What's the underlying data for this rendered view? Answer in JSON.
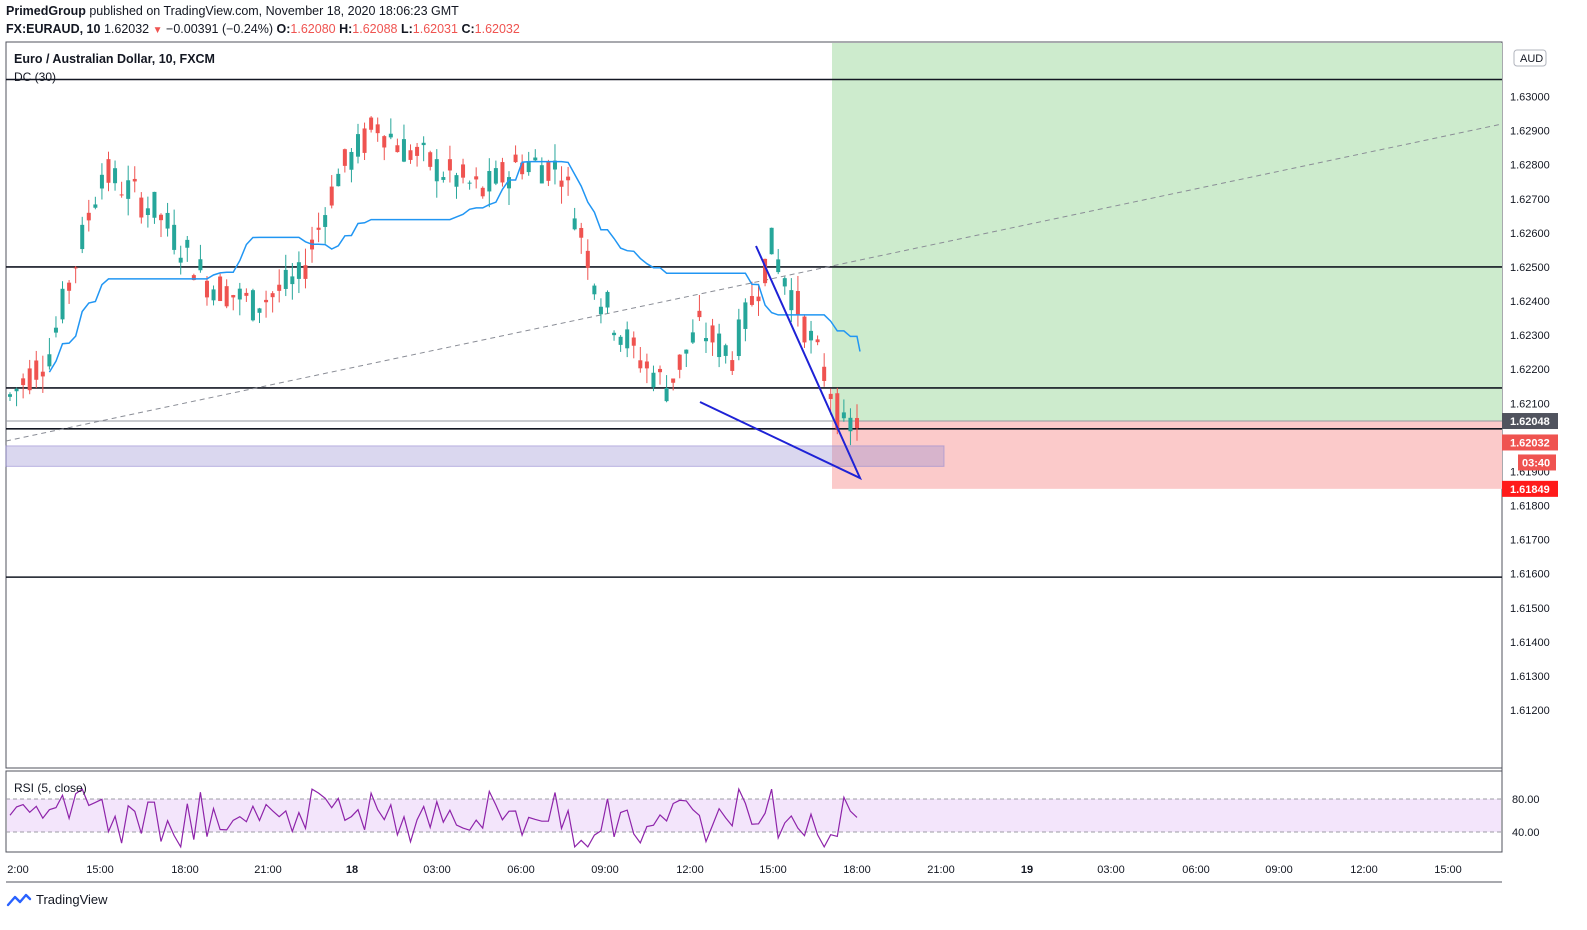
{
  "header": {
    "publisher": "PrimedGroup",
    "published_text": "published on TradingView.com, November 18, 2020 18:06:23 GMT",
    "symbol": "FX:EURAUD, 10",
    "last": "1.62032",
    "change": "−0.00391 (−0.24%)",
    "o_label": "O:",
    "o": "1.62080",
    "h_label": "H:",
    "h": "1.62088",
    "l_label": "L:",
    "l": "1.62031",
    "c_label": "C:",
    "c": "1.62032"
  },
  "legend": {
    "title": "Euro / Australian Dollar, 10, FXCM",
    "indicator": "DC (30)",
    "rsi": "RSI (5, close)",
    "currency": "AUD"
  },
  "footer": {
    "brand": "TradingView"
  },
  "chart_data": {
    "type": "candlestick",
    "symbol": "FX:EURAUD",
    "timeframe": "10",
    "title": "Euro / Australian Dollar, 10, FXCM",
    "price_axis": {
      "range": [
        1.6103,
        1.6316
      ],
      "ticks": [
        "1.63000",
        "1.62900",
        "1.62800",
        "1.62700",
        "1.62600",
        "1.62500",
        "1.62400",
        "1.62300",
        "1.62200",
        "1.62100",
        "1.61900",
        "1.61800",
        "1.61700",
        "1.61600",
        "1.61500",
        "1.61400",
        "1.61300",
        "1.61200"
      ]
    },
    "time_axis": {
      "labels": [
        "2:00",
        "15:00",
        "18:00",
        "21:00",
        "18",
        "03:00",
        "06:00",
        "09:00",
        "12:00",
        "15:00",
        "18:00",
        "21:00",
        "19",
        "03:00",
        "06:00",
        "09:00",
        "12:00",
        "15:00"
      ]
    },
    "price_labels": {
      "level": "1.62048",
      "last": "1.62032",
      "countdown": "03:40",
      "stop": "1.61849"
    },
    "horizontal_levels": [
      1.6305,
      1.625,
      1.62145,
      1.62025,
      1.6159
    ],
    "zones": {
      "target": [
        1.62048,
        1.6316
      ],
      "stop": [
        1.61849,
        1.62048
      ],
      "support_band": [
        1.61915,
        1.61975
      ]
    },
    "rsi": {
      "name": "RSI (5, close)",
      "upper": 80,
      "lower": 40,
      "ticks": [
        "80.00",
        "40.00"
      ]
    }
  }
}
